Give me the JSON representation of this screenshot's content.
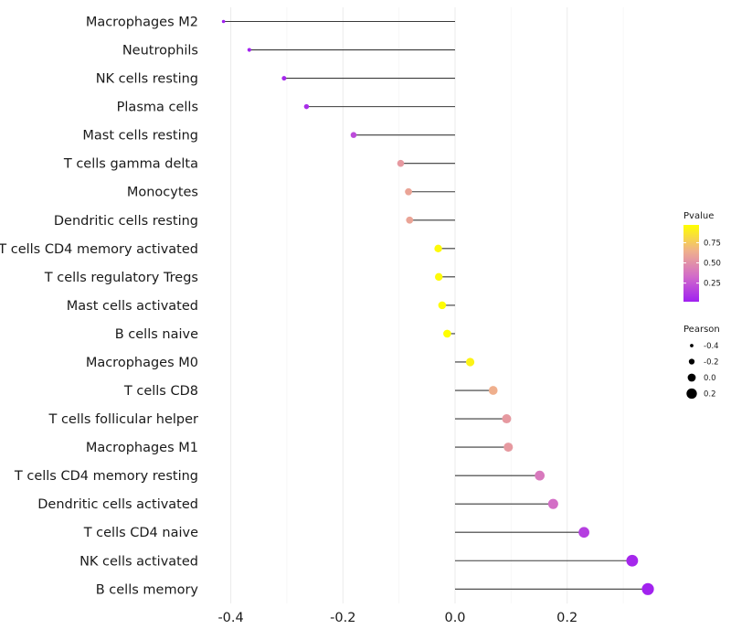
{
  "chart_data": {
    "type": "lollipop",
    "title": "",
    "xlabel": "",
    "ylabel": "",
    "xlim": [
      -0.42,
      0.345
    ],
    "xticks": [
      -0.4,
      -0.2,
      0.0,
      0.2
    ],
    "xtick_labels": [
      "-0.4",
      "-0.2",
      "0.0",
      "0.2"
    ],
    "categories": [
      "Macrophages M2",
      "Neutrophils",
      "NK cells resting",
      "Plasma cells",
      "Mast cells resting",
      "T cells gamma delta",
      "Monocytes",
      "Dendritic cells resting",
      "T cells CD4 memory activated",
      "T cells regulatory  Tregs",
      "Mast cells activated",
      "B cells naive",
      "Macrophages M0",
      "T cells CD8",
      "T cells follicular helper",
      "Macrophages M1",
      "T cells CD4 memory resting",
      "Dendritic cells activated",
      "T cells CD4 naive",
      "NK cells activated",
      "B cells memory"
    ],
    "values": [
      -0.413,
      -0.367,
      -0.305,
      -0.265,
      -0.181,
      -0.097,
      -0.083,
      -0.081,
      -0.03,
      -0.029,
      -0.023,
      -0.014,
      0.027,
      0.068,
      0.092,
      0.095,
      0.151,
      0.175,
      0.23,
      0.316,
      0.344
    ],
    "pvalues": [
      0.02,
      0.03,
      0.05,
      0.08,
      0.2,
      0.55,
      0.6,
      0.6,
      0.95,
      0.95,
      0.96,
      0.97,
      0.92,
      0.65,
      0.55,
      0.55,
      0.4,
      0.35,
      0.15,
      0.05,
      0.03
    ],
    "color_legend": {
      "title": "Pvalue",
      "min": 0.02,
      "max": 0.97,
      "ticks": [
        0.75,
        0.5,
        0.25
      ],
      "tick_labels": [
        "0.75",
        "0.50",
        "0.25"
      ],
      "colors": [
        "#a020f0",
        "#d26bc9",
        "#efb08c",
        "#ffff00"
      ]
    },
    "size_legend": {
      "title": "Pearson",
      "values": [
        -0.4,
        -0.2,
        0.0,
        0.2
      ],
      "labels": [
        "-0.4",
        "-0.2",
        "0.0",
        "0.2"
      ]
    }
  }
}
